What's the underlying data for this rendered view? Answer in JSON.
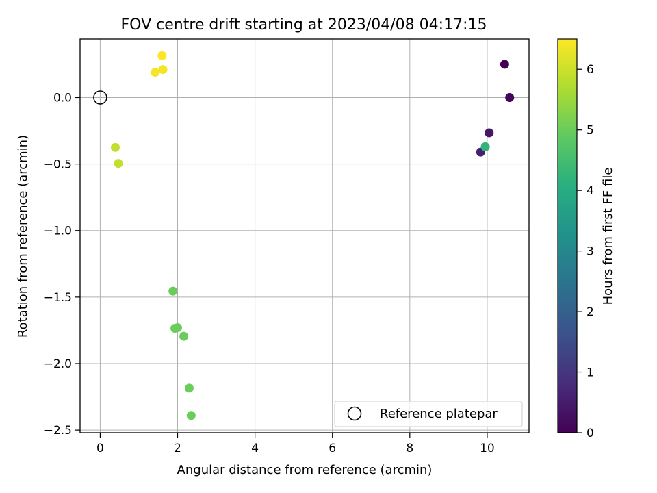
{
  "chart_data": {
    "type": "scatter",
    "title": "FOV centre drift starting at 2023/04/08 04:17:15",
    "xlabel": "Angular distance from reference (arcmin)",
    "ylabel": "Rotation from reference (arcmin)",
    "xlim": [
      -0.52,
      11.08
    ],
    "ylim": [
      -2.52,
      0.44
    ],
    "xticks": [
      0,
      2,
      4,
      6,
      8,
      10
    ],
    "xtick_labels": [
      "0",
      "2",
      "4",
      "6",
      "8",
      "10"
    ],
    "yticks": [
      0.0,
      -0.5,
      -1.0,
      -1.5,
      -2.0,
      -2.5
    ],
    "ytick_labels": [
      "0.0",
      "−0.5",
      "−1.0",
      "−1.5",
      "−2.0",
      "−2.5"
    ],
    "grid": true,
    "colormap": "viridis",
    "colorbar": {
      "label": "Hours from first FF file",
      "range": [
        0,
        6.5
      ],
      "ticks": [
        0,
        1,
        2,
        3,
        4,
        5,
        6
      ],
      "tick_labels": [
        "0",
        "1",
        "2",
        "3",
        "4",
        "5",
        "6"
      ]
    },
    "legend": {
      "placement": "lower-right",
      "entries": [
        {
          "label": "Reference platepar",
          "marker": "open-circle"
        }
      ]
    },
    "reference_point": {
      "x": 0,
      "y": 0
    },
    "points": [
      {
        "x": 10.45,
        "y": 0.25,
        "hours": 0.0
      },
      {
        "x": 10.58,
        "y": 0.0,
        "hours": 0.1
      },
      {
        "x": 10.05,
        "y": -0.265,
        "hours": 0.4
      },
      {
        "x": 9.83,
        "y": -0.41,
        "hours": 0.6
      },
      {
        "x": 9.95,
        "y": -0.37,
        "hours": 4.2
      },
      {
        "x": 1.88,
        "y": -1.455,
        "hours": 5.0
      },
      {
        "x": 1.93,
        "y": -1.735,
        "hours": 5.0
      },
      {
        "x": 2.0,
        "y": -1.73,
        "hours": 5.0
      },
      {
        "x": 2.16,
        "y": -1.795,
        "hours": 5.0
      },
      {
        "x": 2.3,
        "y": -2.185,
        "hours": 5.0
      },
      {
        "x": 2.35,
        "y": -2.39,
        "hours": 5.0
      },
      {
        "x": 0.39,
        "y": -0.375,
        "hours": 5.9
      },
      {
        "x": 0.47,
        "y": -0.495,
        "hours": 5.9
      },
      {
        "x": 1.42,
        "y": 0.19,
        "hours": 6.4
      },
      {
        "x": 1.62,
        "y": 0.21,
        "hours": 6.4
      },
      {
        "x": 1.6,
        "y": 0.315,
        "hours": 6.5
      }
    ]
  }
}
